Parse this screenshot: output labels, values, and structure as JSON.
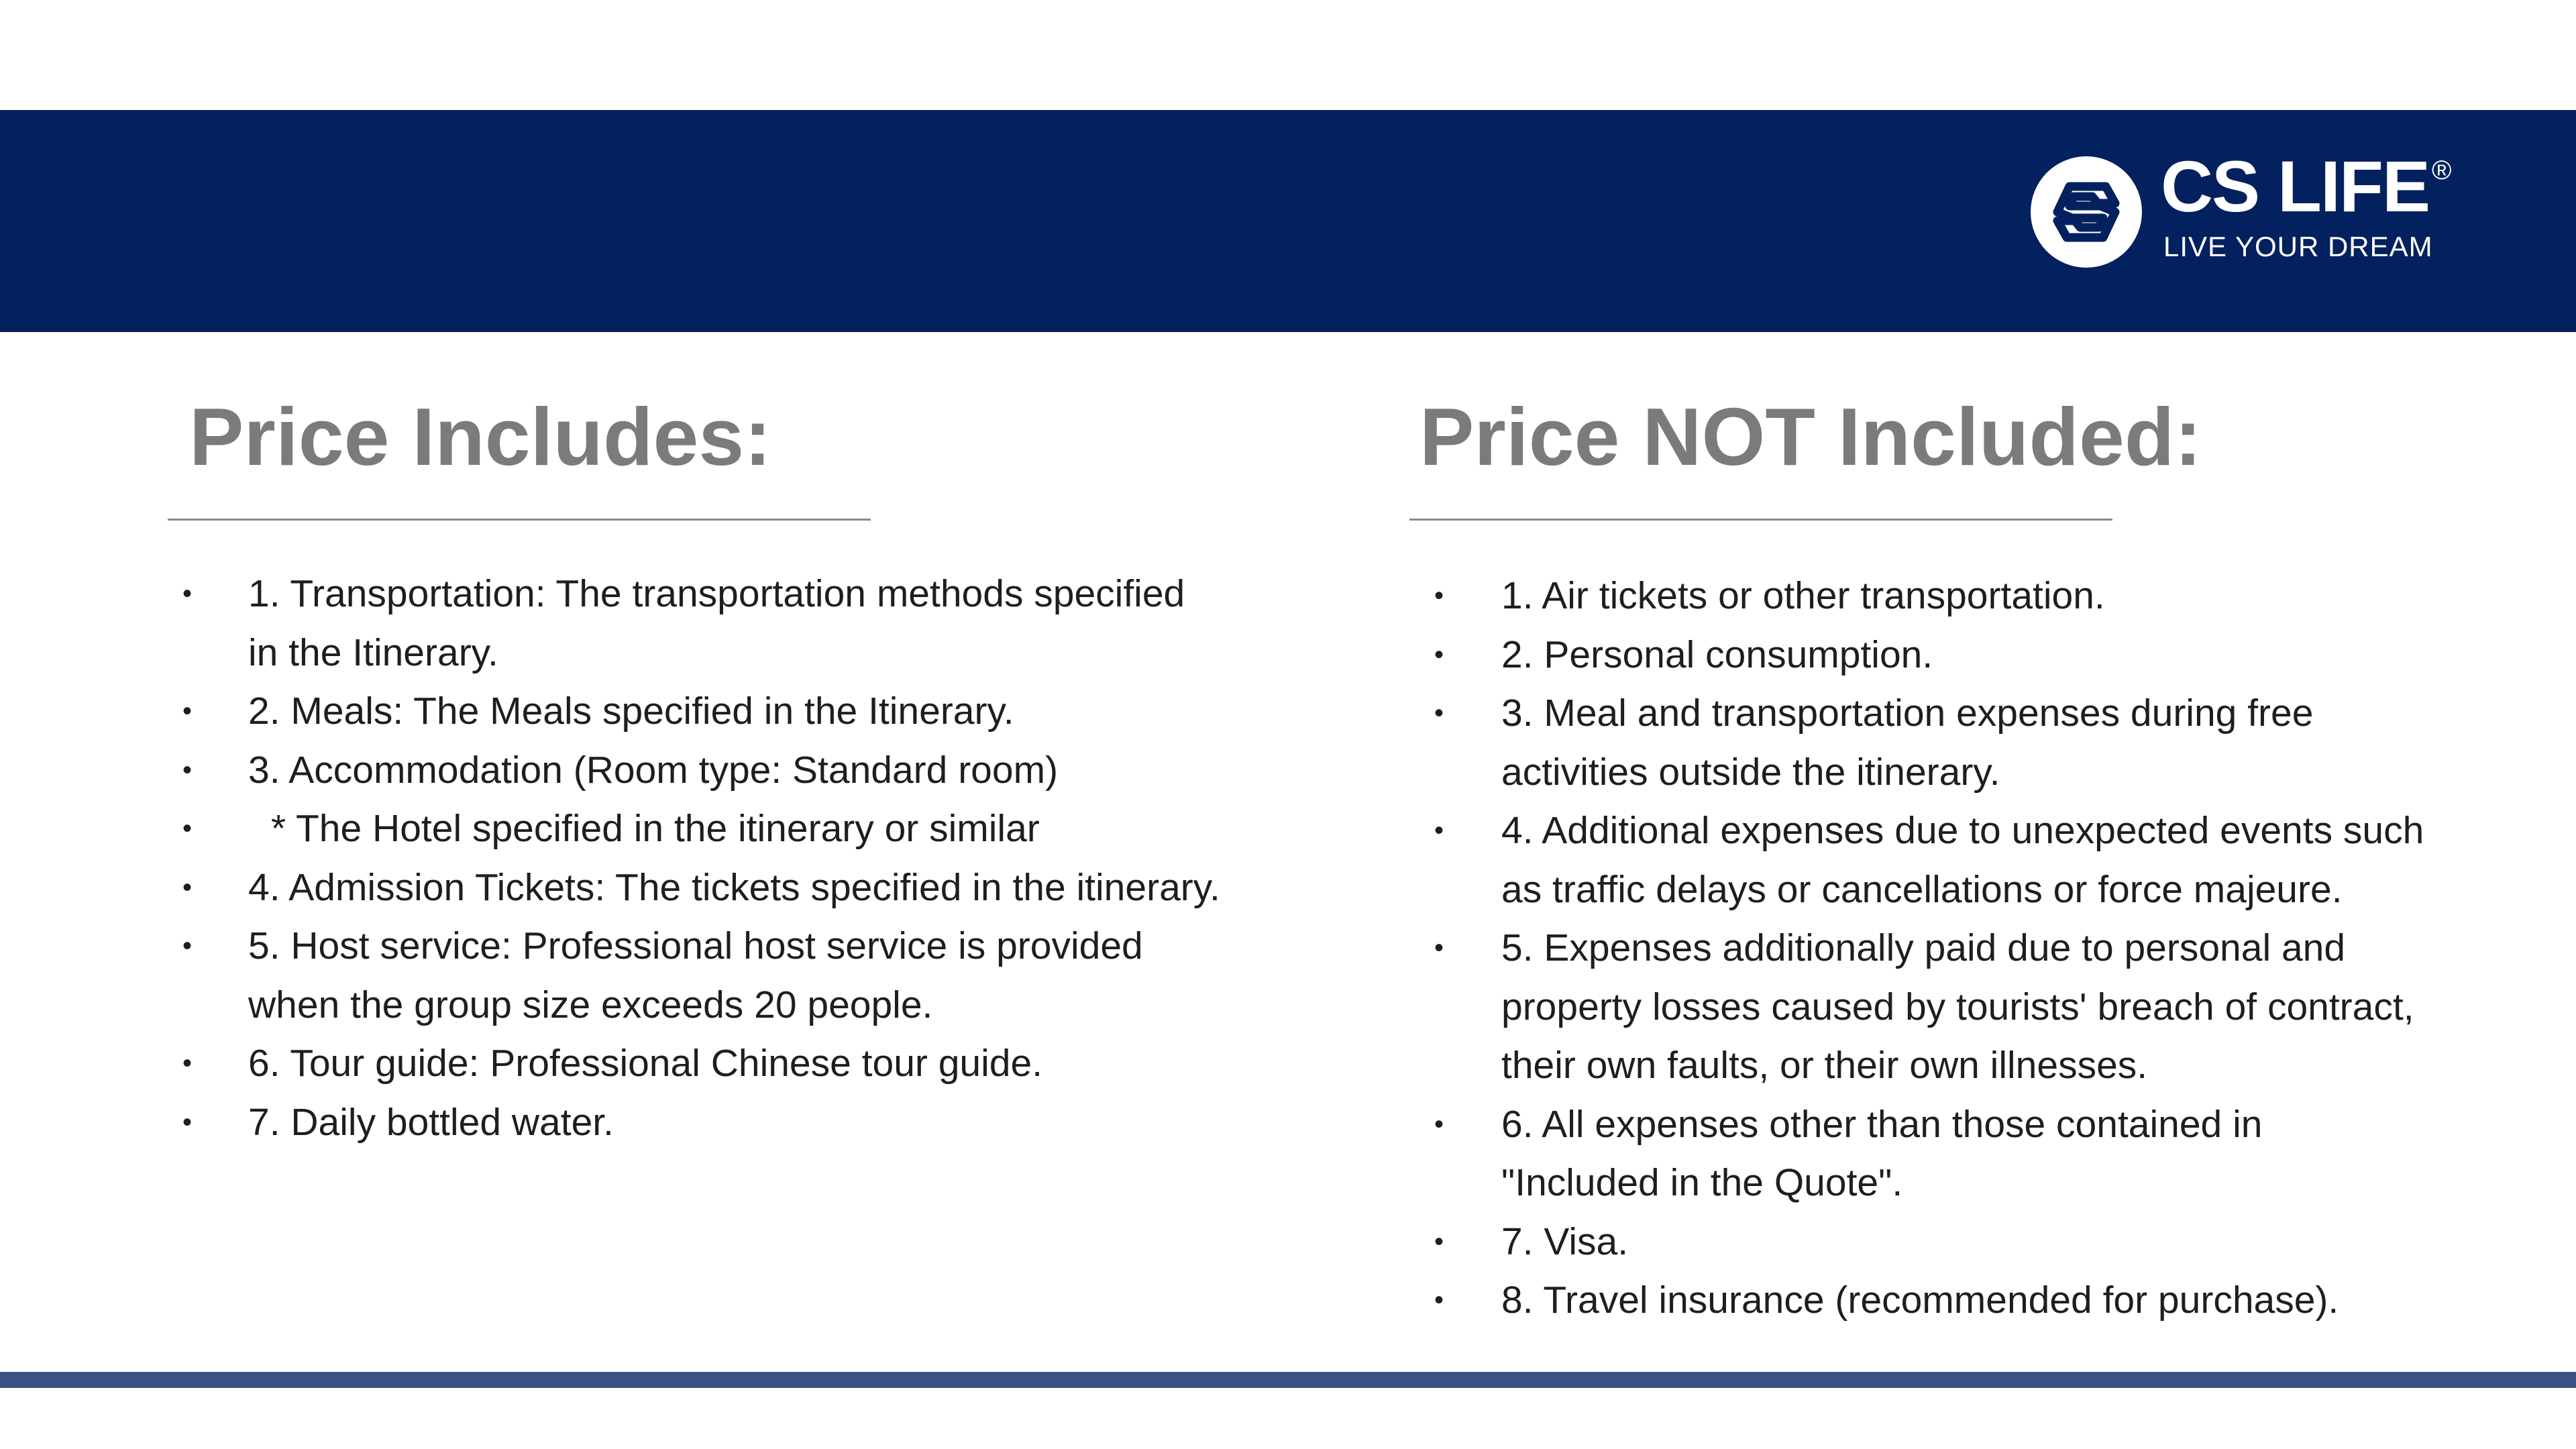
{
  "brand": {
    "name": "CS LIFE",
    "registered": "®",
    "tagline": "LIVE YOUR DREAM",
    "header_color": "#03215e",
    "accent_bar_color": "#3b5382"
  },
  "includes": {
    "title": "Price Includes:",
    "items": [
      {
        "lines": [
          "1. Transportation: The transportation methods specified",
          "in the Itinerary."
        ]
      },
      {
        "lines": [
          "2. Meals: The Meals specified in the Itinerary."
        ]
      },
      {
        "lines": [
          "3. Accommodation (Room type: Standard room)"
        ]
      },
      {
        "lines": [
          "* The Hotel specified in the itinerary or similar"
        ]
      },
      {
        "lines": [
          "4. Admission Tickets: The tickets specified in the itinerary."
        ]
      },
      {
        "lines": [
          "5. Host service: Professional host service is provided",
          "when the group size exceeds 20 people."
        ]
      },
      {
        "lines": [
          "6. Tour guide: Professional Chinese tour guide."
        ]
      },
      {
        "lines": [
          "7. Daily bottled water."
        ]
      }
    ]
  },
  "excludes": {
    "title": "Price NOT Included:",
    "items": [
      {
        "lines": [
          "1. Air tickets or other transportation."
        ]
      },
      {
        "lines": [
          "2. Personal consumption."
        ]
      },
      {
        "lines": [
          "3. Meal and transportation expenses during free",
          "activities outside the itinerary."
        ]
      },
      {
        "lines": [
          "4. Additional expenses due to unexpected events such",
          "as traffic delays or cancellations or force majeure."
        ]
      },
      {
        "lines": [
          "5. Expenses additionally paid due to personal and",
          "property losses caused by tourists' breach of contract,",
          "their own faults, or their own illnesses."
        ]
      },
      {
        "lines": [
          "6. All expenses other than those contained in",
          "\"Included in the Quote\"."
        ]
      },
      {
        "lines": [
          "7. Visa."
        ]
      },
      {
        "lines": [
          "8. Travel insurance (recommended for purchase)."
        ]
      }
    ]
  },
  "bullet": "•"
}
